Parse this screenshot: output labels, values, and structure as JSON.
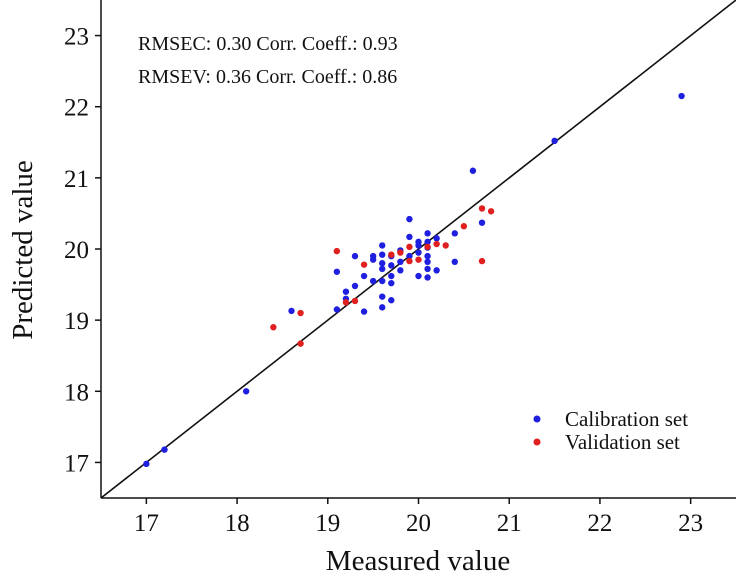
{
  "chart_data": {
    "type": "scatter",
    "title": "",
    "xlabel": "Measured value",
    "ylabel": "Predicted value",
    "xlim": [
      16.5,
      23.5
    ],
    "ylim": [
      16.5,
      23.5
    ],
    "x_ticks": [
      17,
      18,
      19,
      20,
      21,
      22,
      23
    ],
    "y_ticks": [
      17,
      18,
      19,
      20,
      21,
      22,
      23
    ],
    "grid": false,
    "reference_line": "y = x",
    "legend_position": "bottom-right",
    "annotations": [
      "RMSEC: 0.30 Corr. Coeff.: 0.93",
      "RMSEV: 0.36 Corr. Coeff.: 0.86"
    ],
    "series": [
      {
        "name": "Calibration set",
        "color": "#1f1fe0",
        "points": [
          [
            17.0,
            16.98
          ],
          [
            17.2,
            17.18
          ],
          [
            18.1,
            18.0
          ],
          [
            18.6,
            19.13
          ],
          [
            19.1,
            19.15
          ],
          [
            19.1,
            19.68
          ],
          [
            19.2,
            19.4
          ],
          [
            19.2,
            19.3
          ],
          [
            19.3,
            19.48
          ],
          [
            19.3,
            19.9
          ],
          [
            19.4,
            19.12
          ],
          [
            19.4,
            19.62
          ],
          [
            19.5,
            19.55
          ],
          [
            19.5,
            19.85
          ],
          [
            19.5,
            19.9
          ],
          [
            19.6,
            19.18
          ],
          [
            19.6,
            19.33
          ],
          [
            19.6,
            19.55
          ],
          [
            19.6,
            19.72
          ],
          [
            19.6,
            19.8
          ],
          [
            19.6,
            19.92
          ],
          [
            19.6,
            20.05
          ],
          [
            19.7,
            19.28
          ],
          [
            19.7,
            19.52
          ],
          [
            19.7,
            19.62
          ],
          [
            19.7,
            19.77
          ],
          [
            19.7,
            19.9
          ],
          [
            19.8,
            19.7
          ],
          [
            19.8,
            19.82
          ],
          [
            19.8,
            19.98
          ],
          [
            19.9,
            19.9
          ],
          [
            19.9,
            20.17
          ],
          [
            19.9,
            20.42
          ],
          [
            20.0,
            19.62
          ],
          [
            20.0,
            19.95
          ],
          [
            20.0,
            20.05
          ],
          [
            20.0,
            20.1
          ],
          [
            20.1,
            19.6
          ],
          [
            20.1,
            19.72
          ],
          [
            20.1,
            19.82
          ],
          [
            20.1,
            19.9
          ],
          [
            20.1,
            20.02
          ],
          [
            20.1,
            20.1
          ],
          [
            20.1,
            20.22
          ],
          [
            20.2,
            19.7
          ],
          [
            20.2,
            20.15
          ],
          [
            20.4,
            20.22
          ],
          [
            20.4,
            19.82
          ],
          [
            20.6,
            21.1
          ],
          [
            20.7,
            20.37
          ],
          [
            21.5,
            21.52
          ],
          [
            22.9,
            22.15
          ]
        ]
      },
      {
        "name": "Validation set",
        "color": "#e01f1f",
        "points": [
          [
            18.4,
            18.9
          ],
          [
            18.7,
            18.67
          ],
          [
            18.7,
            19.1
          ],
          [
            19.1,
            19.97
          ],
          [
            19.2,
            19.25
          ],
          [
            19.3,
            19.27
          ],
          [
            19.4,
            19.78
          ],
          [
            19.7,
            19.92
          ],
          [
            19.8,
            19.95
          ],
          [
            19.9,
            19.83
          ],
          [
            19.9,
            20.03
          ],
          [
            20.0,
            19.85
          ],
          [
            20.1,
            20.03
          ],
          [
            20.2,
            20.07
          ],
          [
            20.3,
            20.05
          ],
          [
            20.5,
            20.32
          ],
          [
            20.7,
            20.57
          ],
          [
            20.7,
            19.83
          ],
          [
            20.8,
            20.53
          ]
        ]
      }
    ]
  }
}
